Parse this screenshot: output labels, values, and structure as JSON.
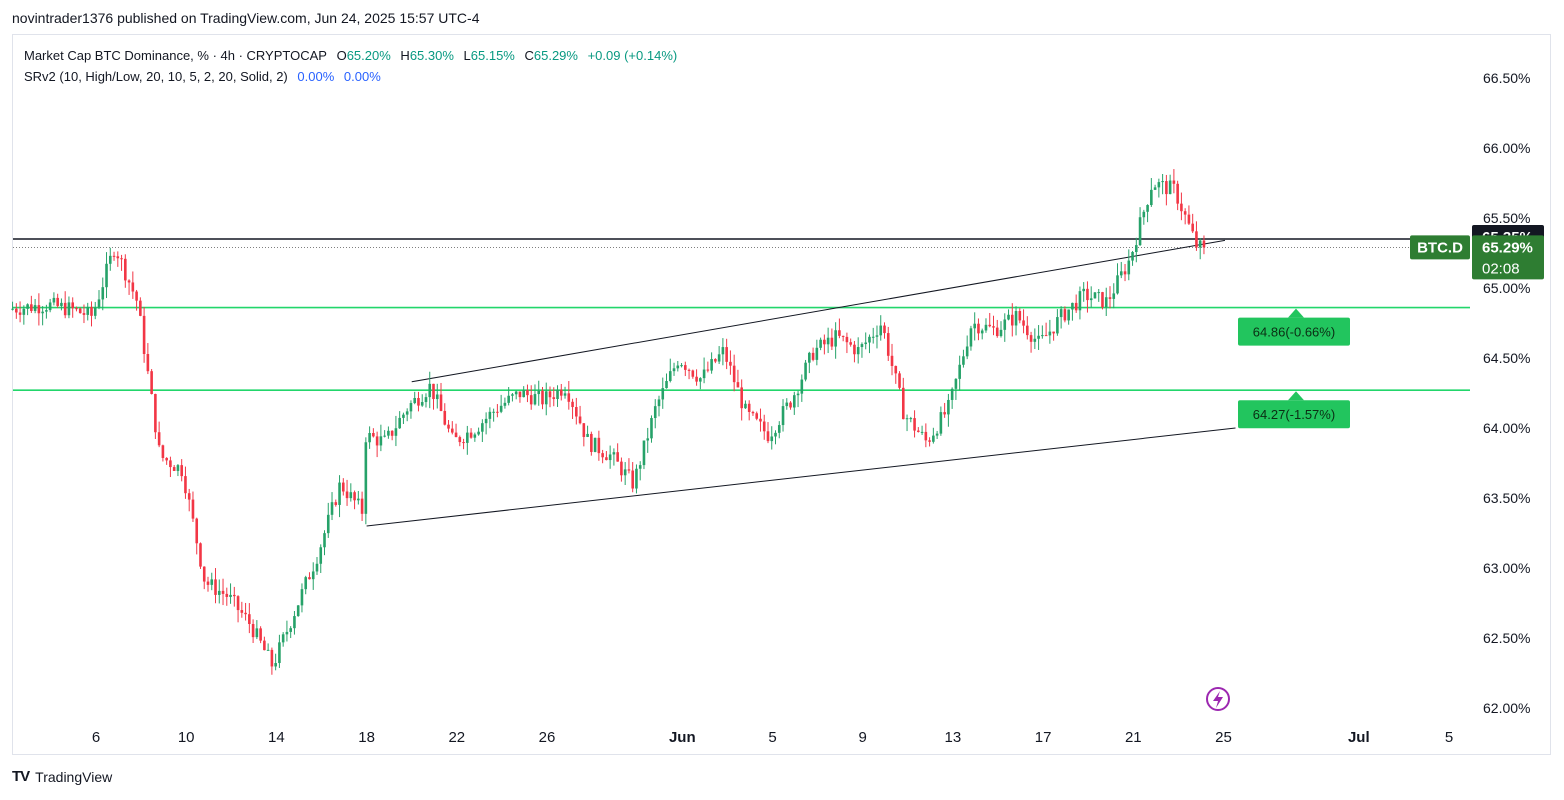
{
  "publisher_line": "novintrader1376 published on TradingView.com, Jun 24, 2025 15:57 UTC-4",
  "legend": {
    "symbol": "Market Cap BTC Dominance, % · 4h · CRYPTOCAP",
    "o_label": "O",
    "o_value": "65.20%",
    "h_label": "H",
    "h_value": "65.30%",
    "l_label": "L",
    "l_value": "65.15%",
    "c_label": "C",
    "c_value": "65.29%",
    "change": "+0.09 (+0.14%)",
    "indicator": "SRv2 (10, High/Low, 20, 10, 5, 2, 20, Solid, 2)",
    "ind_value_1": "0.00%",
    "ind_value_2": "0.00%"
  },
  "footer": {
    "logo": "TV",
    "brand": "TradingView"
  },
  "colors": {
    "up": "#26a269",
    "down": "#f23645",
    "sr_line": "#22d66b",
    "sr_label": "#22c55e",
    "price_badge": "#2e7d32",
    "accent_purple": "#9c27b0"
  },
  "chart_data": {
    "type": "candlestick",
    "symbol": "BTC.D",
    "interval": "4h",
    "y_axis_labels": [
      "66.50%",
      "66.00%",
      "65.50%",
      "65.00%",
      "64.50%",
      "64.00%",
      "63.50%",
      "63.00%",
      "62.50%",
      "62.00%"
    ],
    "y_ticks": [
      66.5,
      66.0,
      65.5,
      65.0,
      64.5,
      64.0,
      63.5,
      63.0,
      62.5,
      62.0
    ],
    "ylim": [
      61.9,
      66.95
    ],
    "x_axis_labels": [
      "6",
      "10",
      "14",
      "18",
      "22",
      "26",
      "Jun",
      "5",
      "9",
      "13",
      "17",
      "21",
      "25",
      "Jul",
      "5"
    ],
    "current_price": {
      "label": "BTC.D",
      "value": "65.29%",
      "countdown": "02:08",
      "numeric": 65.29
    },
    "horizontal_line": {
      "value": 65.35,
      "label": "65.35%"
    },
    "support_resistance": [
      {
        "value": 64.86,
        "label": "64.86(-0.66%)"
      },
      {
        "value": 64.27,
        "label": "64.27(-1.57%)"
      }
    ],
    "channel": {
      "upper": [
        {
          "date": "May 20",
          "value": 64.33
        },
        {
          "date": "Jun 24",
          "value": 65.34
        }
      ],
      "lower": [
        {
          "date": "May 18",
          "value": 63.3
        },
        {
          "date": "Jun 25",
          "value": 64.0
        }
      ]
    },
    "key_points": [
      {
        "date": "May 4",
        "value": 64.88
      },
      {
        "date": "May 5",
        "value": 64.85
      },
      {
        "date": "May 6",
        "value": 64.8
      },
      {
        "date": "May 7",
        "value": 65.3
      },
      {
        "date": "May 8",
        "value": 64.9
      },
      {
        "date": "May 9",
        "value": 63.8
      },
      {
        "date": "May 10",
        "value": 63.7
      },
      {
        "date": "May 11",
        "value": 62.9
      },
      {
        "date": "May 12",
        "value": 62.8
      },
      {
        "date": "May 13",
        "value": 62.6
      },
      {
        "date": "May 14",
        "value": 62.3
      },
      {
        "date": "May 15",
        "value": 62.7
      },
      {
        "date": "May 16",
        "value": 63.1
      },
      {
        "date": "May 17",
        "value": 63.6
      },
      {
        "date": "May 18",
        "value": 63.4
      },
      {
        "date": "May 18",
        "value": 63.95
      },
      {
        "date": "May 19",
        "value": 63.9
      },
      {
        "date": "May 20",
        "value": 64.15
      },
      {
        "date": "May 21",
        "value": 64.3
      },
      {
        "date": "May 22",
        "value": 63.9
      },
      {
        "date": "May 23",
        "value": 64.0
      },
      {
        "date": "May 24",
        "value": 64.15
      },
      {
        "date": "May 25",
        "value": 64.25
      },
      {
        "date": "May 26",
        "value": 64.2
      },
      {
        "date": "May 27",
        "value": 64.3
      },
      {
        "date": "May 28",
        "value": 63.9
      },
      {
        "date": "May 29",
        "value": 63.8
      },
      {
        "date": "May 30",
        "value": 63.6
      },
      {
        "date": "May 31",
        "value": 64.15
      },
      {
        "date": "Jun 1",
        "value": 64.5
      },
      {
        "date": "Jun 2",
        "value": 64.35
      },
      {
        "date": "Jun 3",
        "value": 64.55
      },
      {
        "date": "Jun 4",
        "value": 64.1
      },
      {
        "date": "Jun 5",
        "value": 63.95
      },
      {
        "date": "Jun 6",
        "value": 64.2
      },
      {
        "date": "Jun 7",
        "value": 64.55
      },
      {
        "date": "Jun 8",
        "value": 64.65
      },
      {
        "date": "Jun 9",
        "value": 64.55
      },
      {
        "date": "Jun 10",
        "value": 64.75
      },
      {
        "date": "Jun 11",
        "value": 64.1
      },
      {
        "date": "Jun 12",
        "value": 63.9
      },
      {
        "date": "Jun 13",
        "value": 64.15
      },
      {
        "date": "Jun 14",
        "value": 64.75
      },
      {
        "date": "Jun 15",
        "value": 64.7
      },
      {
        "date": "Jun 16",
        "value": 64.8
      },
      {
        "date": "Jun 17",
        "value": 64.6
      },
      {
        "date": "Jun 18",
        "value": 64.8
      },
      {
        "date": "Jun 19",
        "value": 64.95
      },
      {
        "date": "Jun 20",
        "value": 64.9
      },
      {
        "date": "Jun 21",
        "value": 65.2
      },
      {
        "date": "Jun 22",
        "value": 65.75
      },
      {
        "date": "Jun 23",
        "value": 65.7
      },
      {
        "date": "Jun 24",
        "value": 65.29
      }
    ]
  }
}
